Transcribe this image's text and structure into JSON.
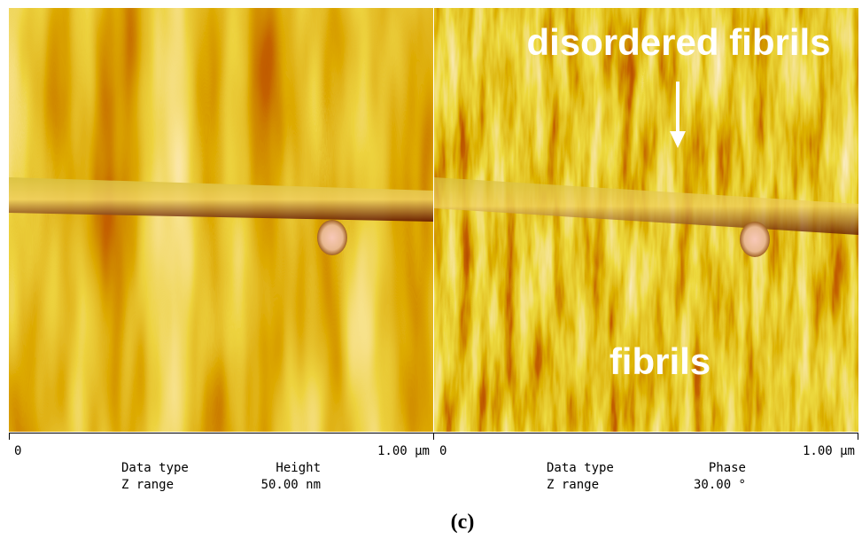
{
  "panels": [
    {
      "scale_start": "0",
      "scale_end": "1.00 µm",
      "data_type_label": "Data type",
      "data_type": "Height",
      "z_range_label": "Z range",
      "z_range": "50.00 nm",
      "annotations": []
    },
    {
      "scale_start": "0",
      "scale_end": "1.00 µm",
      "data_type_label": "Data type",
      "data_type": "Phase",
      "z_range_label": "Z range",
      "z_range": "30.00 °",
      "annotations": [
        "disordered fibrils",
        "fibrils"
      ]
    }
  ],
  "caption": "(c)"
}
